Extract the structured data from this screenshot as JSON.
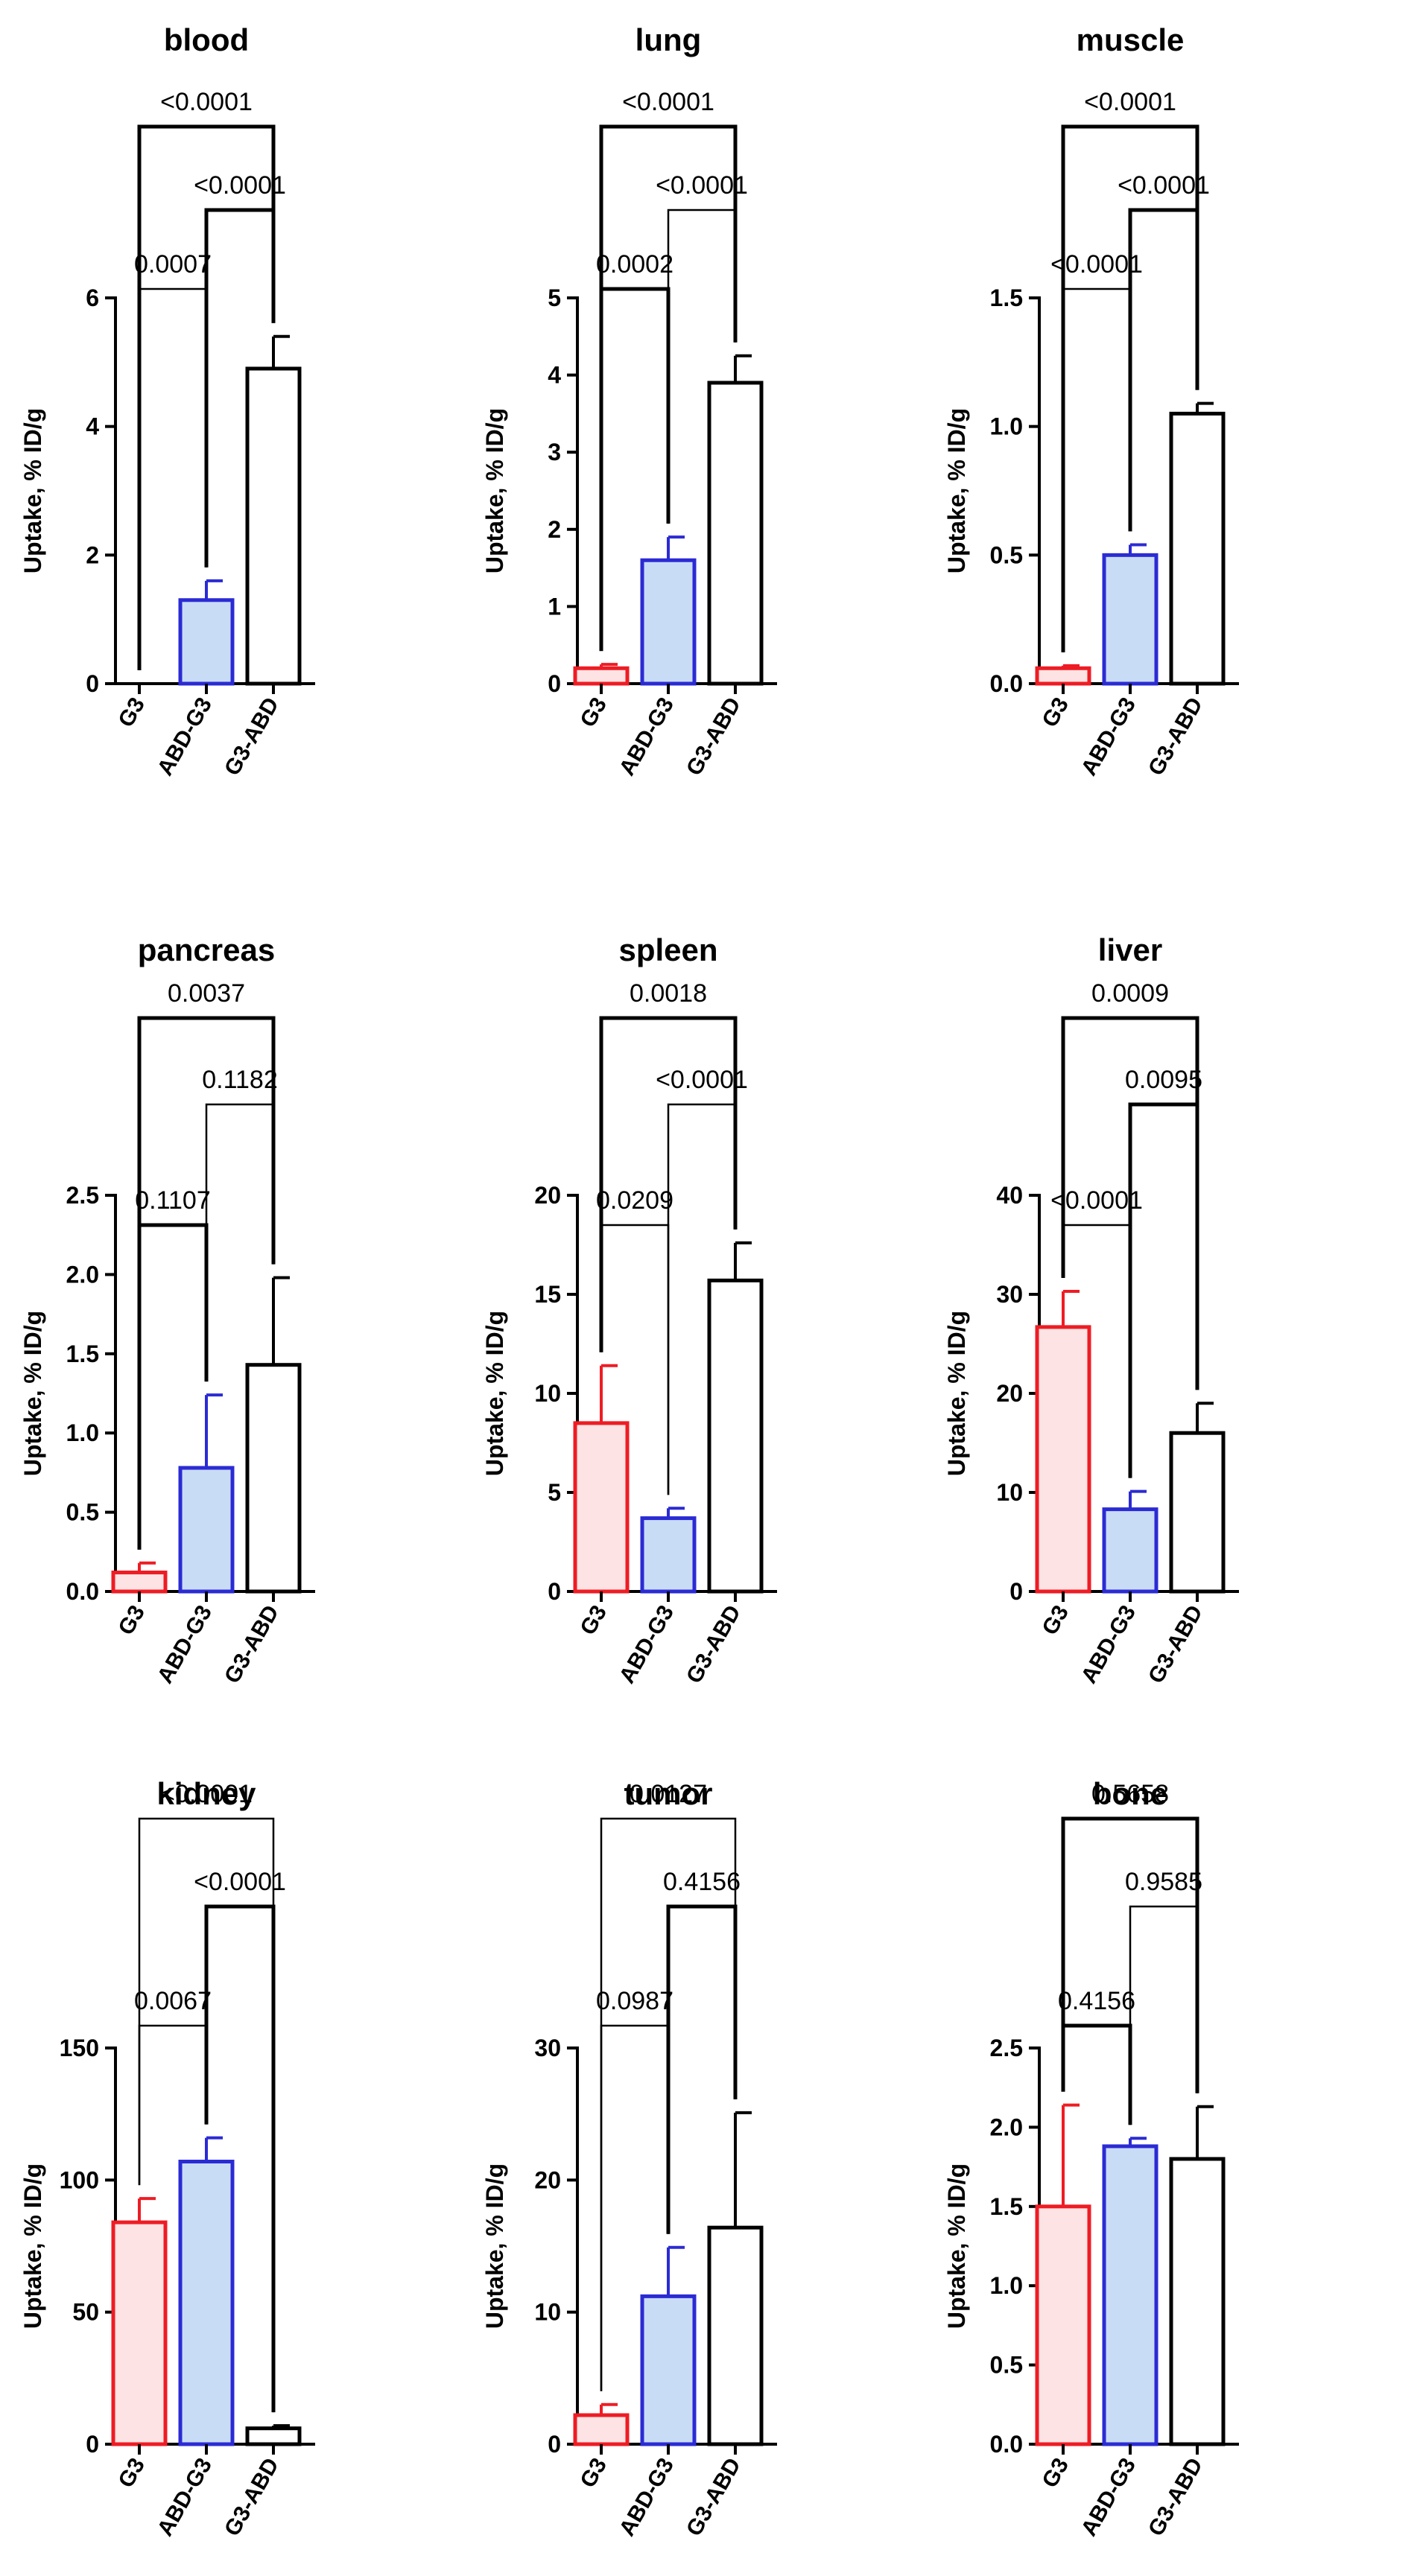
{
  "figure": {
    "groups": [
      "G3",
      "ABD-G3",
      "G3-ABD"
    ],
    "ylabel": "Uptake,  % ID/g",
    "colors": {
      "g3_stroke": "#ee1c24",
      "g3_fill": "#fde3e3",
      "abd_stroke": "#2b2bd4",
      "abd_fill": "#c9dcf6",
      "g3abd_stroke": "#000000",
      "g3abd_fill": "#ffffff",
      "axis": "#000000"
    }
  },
  "chart_data": [
    {
      "type": "bar",
      "title": "blood",
      "categories": [
        "G3",
        "ABD-G3",
        "G3-ABD"
      ],
      "values": [
        0.0,
        1.3,
        4.9
      ],
      "errors": [
        0.0,
        0.3,
        0.5
      ],
      "ylim": [
        0,
        6
      ],
      "yticks": [
        0,
        2,
        4,
        6
      ],
      "ytick_labels": [
        "0",
        "2",
        "4",
        "6"
      ],
      "ylabel": "Uptake,  % ID/g",
      "comparisons": [
        {
          "pair": [
            "G3",
            "ABD-G3"
          ],
          "p": "0.0007",
          "bold": false
        },
        {
          "pair": [
            "ABD-G3",
            "G3-ABD"
          ],
          "p": "<0.0001",
          "bold": true
        },
        {
          "pair": [
            "G3",
            "G3-ABD"
          ],
          "p": "<0.0001",
          "bold": true
        }
      ]
    },
    {
      "type": "bar",
      "title": "lung",
      "categories": [
        "G3",
        "ABD-G3",
        "G3-ABD"
      ],
      "values": [
        0.2,
        1.6,
        3.9
      ],
      "errors": [
        0.05,
        0.3,
        0.35
      ],
      "ylim": [
        0,
        5
      ],
      "yticks": [
        0,
        1,
        2,
        3,
        4,
        5
      ],
      "ytick_labels": [
        "0",
        "1",
        "2",
        "3",
        "4",
        "5"
      ],
      "ylabel": "Uptake,  % ID/g",
      "comparisons": [
        {
          "pair": [
            "G3",
            "ABD-G3"
          ],
          "p": "0.0002",
          "bold": true
        },
        {
          "pair": [
            "ABD-G3",
            "G3-ABD"
          ],
          "p": "<0.0001",
          "bold": false
        },
        {
          "pair": [
            "G3",
            "G3-ABD"
          ],
          "p": "<0.0001",
          "bold": true
        }
      ]
    },
    {
      "type": "bar",
      "title": "muscle",
      "categories": [
        "G3",
        "ABD-G3",
        "G3-ABD"
      ],
      "values": [
        0.06,
        0.5,
        1.05
      ],
      "errors": [
        0.01,
        0.04,
        0.04
      ],
      "ylim": [
        0,
        1.5
      ],
      "yticks": [
        0,
        0.5,
        1.0,
        1.5
      ],
      "ytick_labels": [
        "0.0",
        "0.5",
        "1.0",
        "1.5"
      ],
      "ylabel": "Uptake,  % ID/g",
      "comparisons": [
        {
          "pair": [
            "G3",
            "ABD-G3"
          ],
          "p": "<0.0001",
          "bold": false
        },
        {
          "pair": [
            "ABD-G3",
            "G3-ABD"
          ],
          "p": "<0.0001",
          "bold": true
        },
        {
          "pair": [
            "G3",
            "G3-ABD"
          ],
          "p": "<0.0001",
          "bold": true
        }
      ]
    },
    {
      "type": "bar",
      "title": "pancreas",
      "categories": [
        "G3",
        "ABD-G3",
        "G3-ABD"
      ],
      "values": [
        0.12,
        0.78,
        1.43
      ],
      "errors": [
        0.06,
        0.46,
        0.55
      ],
      "ylim": [
        0,
        2.5
      ],
      "yticks": [
        0,
        0.5,
        1.0,
        1.5,
        2.0,
        2.5
      ],
      "ytick_labels": [
        "0.0",
        "0.5",
        "1.0",
        "1.5",
        "2.0",
        "2.5"
      ],
      "ylabel": "Uptake,  % ID/g",
      "comparisons": [
        {
          "pair": [
            "G3",
            "ABD-G3"
          ],
          "p": "0.1107",
          "bold": true
        },
        {
          "pair": [
            "ABD-G3",
            "G3-ABD"
          ],
          "p": "0.1182",
          "bold": false
        },
        {
          "pair": [
            "G3",
            "G3-ABD"
          ],
          "p": "0.0037",
          "bold": true
        }
      ]
    },
    {
      "type": "bar",
      "title": "spleen",
      "categories": [
        "G3",
        "ABD-G3",
        "G3-ABD"
      ],
      "values": [
        8.5,
        3.7,
        15.7
      ],
      "errors": [
        2.9,
        0.5,
        1.9
      ],
      "ylim": [
        0,
        20
      ],
      "yticks": [
        0,
        5,
        10,
        15,
        20
      ],
      "ytick_labels": [
        "0",
        "5",
        "10",
        "15",
        "20"
      ],
      "ylabel": "Uptake,  % ID/g",
      "comparisons": [
        {
          "pair": [
            "G3",
            "ABD-G3"
          ],
          "p": "0.0209",
          "bold": false
        },
        {
          "pair": [
            "ABD-G3",
            "G3-ABD"
          ],
          "p": "<0.0001",
          "bold": false
        },
        {
          "pair": [
            "G3",
            "G3-ABD"
          ],
          "p": "0.0018",
          "bold": true
        }
      ]
    },
    {
      "type": "bar",
      "title": "liver",
      "categories": [
        "G3",
        "ABD-G3",
        "G3-ABD"
      ],
      "values": [
        26.7,
        8.3,
        16.0
      ],
      "errors": [
        3.6,
        1.8,
        3.0
      ],
      "ylim": [
        0,
        40
      ],
      "yticks": [
        0,
        10,
        20,
        30,
        40
      ],
      "ytick_labels": [
        "0",
        "10",
        "20",
        "30",
        "40"
      ],
      "ylabel": "Uptake,  % ID/g",
      "comparisons": [
        {
          "pair": [
            "G3",
            "ABD-G3"
          ],
          "p": "<0.0001",
          "bold": false
        },
        {
          "pair": [
            "ABD-G3",
            "G3-ABD"
          ],
          "p": "0.0095",
          "bold": true
        },
        {
          "pair": [
            "G3",
            "G3-ABD"
          ],
          "p": "0.0009",
          "bold": true
        }
      ]
    },
    {
      "type": "bar",
      "title": "kidney",
      "categories": [
        "G3",
        "ABD-G3",
        "G3-ABD"
      ],
      "values": [
        84,
        107,
        6
      ],
      "errors": [
        9,
        9,
        1
      ],
      "ylim": [
        0,
        150
      ],
      "yticks": [
        0,
        50,
        100,
        150
      ],
      "ytick_labels": [
        "0",
        "50",
        "100",
        "150"
      ],
      "ylabel": "Uptake,  % ID/g",
      "comparisons": [
        {
          "pair": [
            "G3",
            "ABD-G3"
          ],
          "p": "0.0067",
          "bold": false
        },
        {
          "pair": [
            "ABD-G3",
            "G3-ABD"
          ],
          "p": "<0.0001",
          "bold": true
        },
        {
          "pair": [
            "G3",
            "G3-ABD"
          ],
          "p": "<0.0001",
          "bold": false
        }
      ]
    },
    {
      "type": "bar",
      "title": "tumor",
      "categories": [
        "G3",
        "ABD-G3",
        "G3-ABD"
      ],
      "values": [
        2.2,
        11.2,
        16.4
      ],
      "errors": [
        0.8,
        3.7,
        8.7
      ],
      "ylim": [
        0,
        30
      ],
      "yticks": [
        0,
        10,
        20,
        30
      ],
      "ytick_labels": [
        "0",
        "10",
        "20",
        "30"
      ],
      "ylabel": "Uptake,  % ID/g",
      "comparisons": [
        {
          "pair": [
            "G3",
            "ABD-G3"
          ],
          "p": "0.0987",
          "bold": false
        },
        {
          "pair": [
            "ABD-G3",
            "G3-ABD"
          ],
          "p": "0.4156",
          "bold": true
        },
        {
          "pair": [
            "G3",
            "G3-ABD"
          ],
          "p": "0.0127",
          "bold": false
        }
      ]
    },
    {
      "type": "bar",
      "title": "bone",
      "categories": [
        "G3",
        "ABD-G3",
        "G3-ABD"
      ],
      "values": [
        1.5,
        1.88,
        1.8
      ],
      "errors": [
        0.64,
        0.05,
        0.33
      ],
      "ylim": [
        0,
        2.5
      ],
      "yticks": [
        0,
        0.5,
        1.0,
        1.5,
        2.0,
        2.5
      ],
      "ytick_labels": [
        "0.0",
        "0.5",
        "1.0",
        "1.5",
        "2.0",
        "2.5"
      ],
      "ylabel": "Uptake,  % ID/g",
      "comparisons": [
        {
          "pair": [
            "G3",
            "ABD-G3"
          ],
          "p": "0.4156",
          "bold": true
        },
        {
          "pair": [
            "ABD-G3",
            "G3-ABD"
          ],
          "p": "0.9585",
          "bold": false
        },
        {
          "pair": [
            "G3",
            "G3-ABD"
          ],
          "p": "0.5658",
          "bold": true
        }
      ]
    }
  ]
}
